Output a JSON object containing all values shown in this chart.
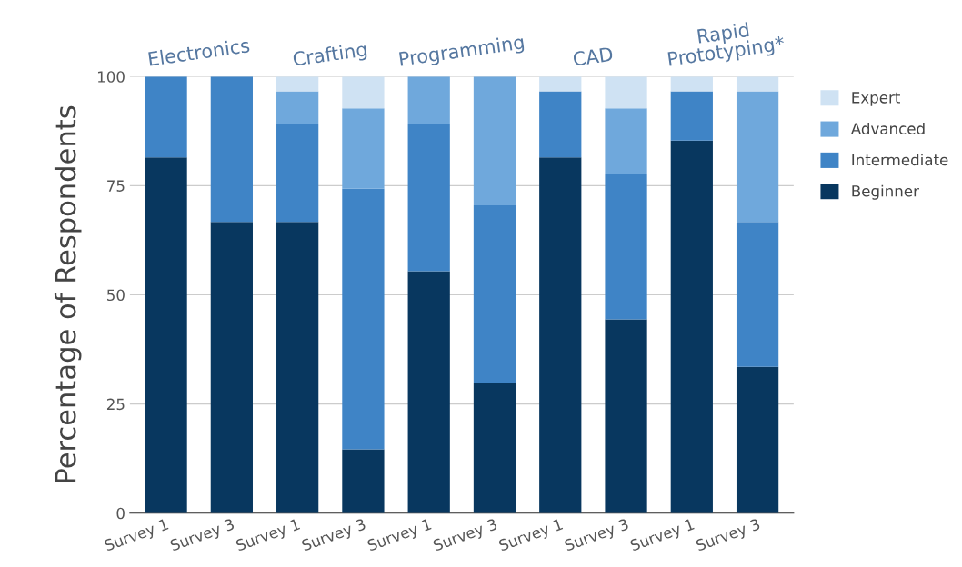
{
  "chart_data": {
    "type": "bar",
    "stacked": true,
    "ylabel": "Percentage of Respondents",
    "categories": [
      "Survey 1",
      "Survey 3",
      "Survey 1",
      "Survey 3",
      "Survey 1",
      "Survey 3",
      "Survey 1",
      "Survey 3",
      "Survey 1",
      "Survey 3"
    ],
    "series": [
      {
        "name": "Beginner",
        "color": "#08375f",
        "values": [
          81.5,
          66.7,
          66.7,
          14.6,
          55.4,
          29.7,
          81.5,
          44.4,
          85.3,
          33.5
        ]
      },
      {
        "name": "Intermediate",
        "color": "#3f84c6",
        "values": [
          18.5,
          33.3,
          22.3,
          59.7,
          33.6,
          40.8,
          15.1,
          33.3,
          11.3,
          33.2
        ]
      },
      {
        "name": "Advanced",
        "color": "#6fa8dc",
        "values": [
          0,
          0,
          7.6,
          18.4,
          11.0,
          29.5,
          0,
          15.0,
          0,
          29.9
        ]
      },
      {
        "name": "Expert",
        "color": "#cfe2f3",
        "values": [
          0,
          0,
          3.4,
          7.3,
          0,
          0,
          3.4,
          7.3,
          3.4,
          3.4
        ]
      }
    ],
    "annotations": [
      "Electronics",
      "Crafting",
      "Programming",
      "CAD",
      "Rapid\nPrototyping*"
    ],
    "ylim": [
      0,
      100
    ],
    "yticks": [
      0,
      25,
      50,
      75,
      100
    ],
    "grid": "y",
    "legend": "right"
  }
}
